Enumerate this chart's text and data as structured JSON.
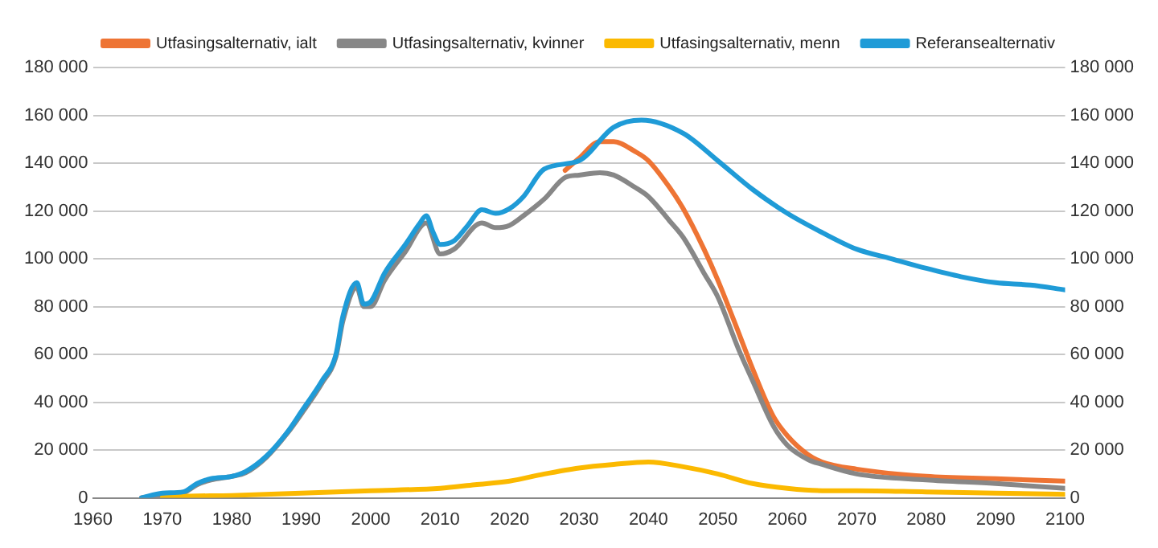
{
  "chart_data": {
    "type": "line",
    "legend": "top",
    "grid": "y",
    "marker": "none",
    "line_style": "solid",
    "xlim": [
      1960,
      2100
    ],
    "xticks": [
      1960,
      1970,
      1980,
      1990,
      2000,
      2010,
      2020,
      2030,
      2040,
      2050,
      2060,
      2070,
      2080,
      2090,
      2100
    ],
    "ylim": [
      0,
      180000
    ],
    "yticks": [
      0,
      {
        "value": 20000,
        "label": "20 000"
      },
      {
        "value": 40000,
        "label": "40 000"
      },
      {
        "value": 60000,
        "label": "60 000"
      },
      {
        "value": 80000,
        "label": "80 000"
      },
      {
        "value": 100000,
        "label": "100 000"
      },
      {
        "value": 120000,
        "label": "120 000"
      },
      {
        "value": 140000,
        "label": "140 000"
      },
      {
        "value": 160000,
        "label": "160 000"
      },
      {
        "value": 180000,
        "label": "180 000"
      }
    ],
    "y2lim": [
      0,
      180000
    ],
    "y2ticks": [
      0,
      {
        "value": 20000,
        "label": "20 000"
      },
      {
        "value": 40000,
        "label": "40 000"
      },
      {
        "value": 60000,
        "label": "60 000"
      },
      {
        "value": 80000,
        "label": "80 000"
      },
      {
        "value": 100000,
        "label": "100 000"
      },
      {
        "value": 120000,
        "label": "120 000"
      },
      {
        "value": 140000,
        "label": "140 000"
      },
      {
        "value": 160000,
        "label": "160 000"
      },
      {
        "value": 180000,
        "label": "180 000"
      }
    ],
    "series": [
      {
        "name": "Utfasingsalternativ, ialt",
        "color": "#ee7434",
        "x": [
          2028,
          2030,
          2033,
          2035,
          2038,
          2040,
          2043,
          2045,
          2048,
          2050,
          2053,
          2055,
          2058,
          2060,
          2063,
          2065,
          2070,
          2080,
          2090,
          2100
        ],
        "values": [
          137000,
          142000,
          149000,
          149000,
          145000,
          141000,
          130000,
          121000,
          104000,
          91000,
          69000,
          54000,
          34000,
          26000,
          18000,
          15000,
          12000,
          9000,
          8000,
          7000
        ]
      },
      {
        "name": "Utfasingsalternativ, kvinner",
        "color": "#878787",
        "x": [
          1967,
          1970,
          1973,
          1975,
          1977,
          1980,
          1982,
          1985,
          1988,
          1990,
          1993,
          1995,
          1996,
          1998,
          1999,
          2000,
          2002,
          2005,
          2008,
          2010,
          2012,
          2016,
          2018,
          2020,
          2022,
          2025,
          2028,
          2030,
          2033,
          2035,
          2038,
          2040,
          2043,
          2045,
          2048,
          2050,
          2053,
          2055,
          2058,
          2060,
          2063,
          2065,
          2070,
          2080,
          2090,
          2100
        ],
        "values": [
          0,
          1000,
          2000,
          5500,
          7500,
          9000,
          10500,
          17000,
          27000,
          35000,
          48000,
          59000,
          74000,
          88000,
          80000,
          80000,
          91000,
          103000,
          115000,
          102000,
          104000,
          115000,
          113000,
          114000,
          118000,
          125000,
          134000,
          135000,
          136000,
          135000,
          130000,
          126000,
          116000,
          109000,
          94000,
          84000,
          62000,
          49000,
          30000,
          22000,
          16000,
          14000,
          10000,
          7500,
          6000,
          4000
        ]
      },
      {
        "name": "Utfasingsalternativ, menn",
        "color": "#fbb900",
        "x": [
          1970,
          1972,
          1980,
          1990,
          2000,
          2010,
          2015,
          2020,
          2025,
          2030,
          2035,
          2040,
          2045,
          2050,
          2055,
          2060,
          2065,
          2070,
          2080,
          2090,
          2100
        ],
        "values": [
          0,
          500,
          1000,
          2000,
          3000,
          4000,
          5500,
          7000,
          10000,
          12500,
          14000,
          15000,
          13000,
          10000,
          6000,
          4000,
          3000,
          3000,
          2500,
          2000,
          1500
        ]
      },
      {
        "name": "Referansealternativ",
        "color": "#1f9bd7",
        "x": [
          1967,
          1970,
          1973,
          1975,
          1977,
          1980,
          1982,
          1985,
          1988,
          1990,
          1993,
          1995,
          1996,
          1998,
          1999,
          2000,
          2002,
          2005,
          2007,
          2008,
          2009,
          2010,
          2012,
          2014,
          2016,
          2018,
          2020,
          2022,
          2025,
          2030,
          2035,
          2039,
          2045,
          2050,
          2055,
          2060,
          2065,
          2070,
          2075,
          2080,
          2085,
          2090,
          2095,
          2100
        ],
        "values": [
          0,
          2000,
          2500,
          6000,
          8000,
          9000,
          11000,
          17500,
          27500,
          36000,
          49000,
          60000,
          76000,
          90000,
          81000,
          82000,
          94000,
          106000,
          114500,
          118000,
          111000,
          106000,
          107500,
          114000,
          120500,
          119000,
          121000,
          126000,
          137500,
          141000,
          155000,
          158000,
          152500,
          141000,
          129000,
          119000,
          111000,
          104000,
          100000,
          96000,
          92500,
          90000,
          89000,
          87000
        ]
      }
    ]
  }
}
